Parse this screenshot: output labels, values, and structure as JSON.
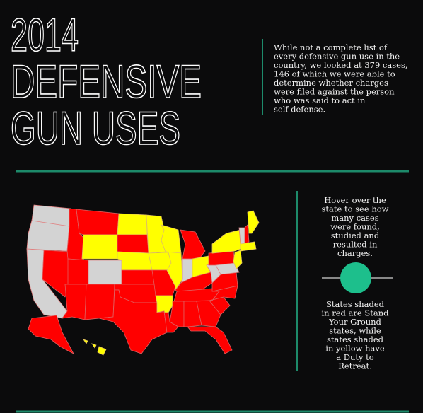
{
  "header": {
    "title_lines": [
      "2014",
      "DEFENSIVE",
      "GUN USES"
    ],
    "intro_lines": [
      "While not a complete list of",
      "every defensive gun use in the",
      "country, we looked at 379 cases,",
      "146 of which we were able to",
      "determine whether charges",
      "were filed against the person",
      "who was said to act in",
      "self-defense."
    ]
  },
  "sidebar": {
    "hover_lines": [
      "Hover over the",
      "state to see how",
      "many cases",
      "were found,",
      "studied and",
      "resulted in",
      "charges."
    ],
    "legend_lines": [
      "States shaded",
      "in red are Stand",
      "Your Ground",
      "states, while",
      "states shaded",
      "in yellow have",
      "a Duty to",
      "Retreat."
    ]
  }
}
